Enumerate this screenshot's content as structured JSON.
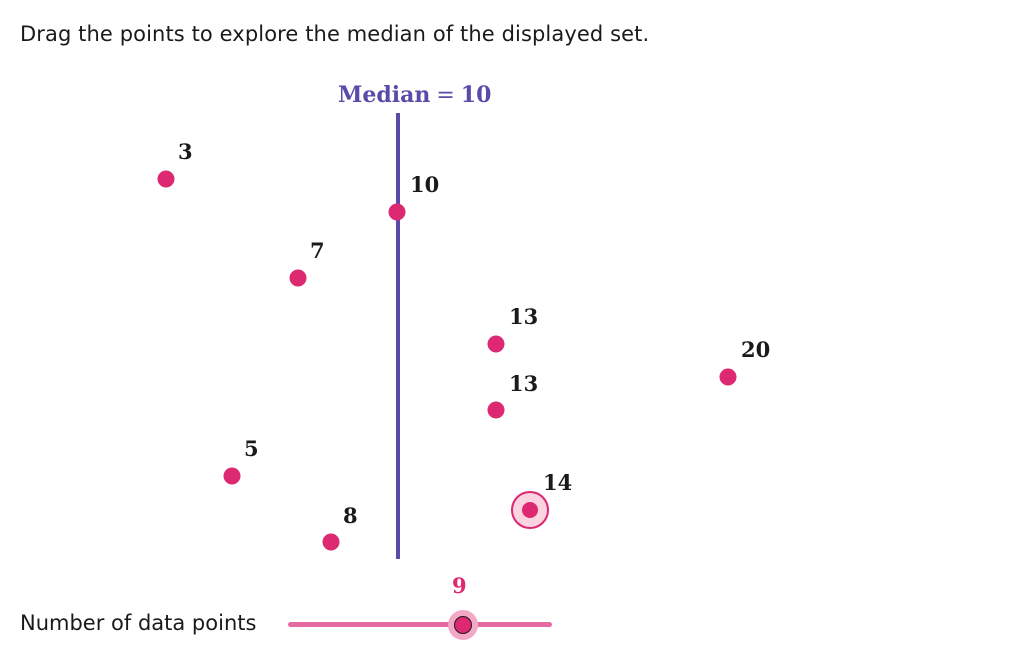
{
  "instruction": "Drag the points to explore the median of the displayed set.",
  "median": {
    "label": "Median",
    "equals": "=",
    "value": "10"
  },
  "points": [
    {
      "label": "3"
    },
    {
      "label": "10"
    },
    {
      "label": "7"
    },
    {
      "label": "13"
    },
    {
      "label": "20"
    },
    {
      "label": "13"
    },
    {
      "label": "5"
    },
    {
      "label": "14"
    },
    {
      "label": "8"
    }
  ],
  "slider": {
    "caption": "Number of data points",
    "value": "9"
  },
  "colors": {
    "point": "#dd2872",
    "median_line": "#5b4aa8",
    "slider_track": "#e46aa0"
  }
}
